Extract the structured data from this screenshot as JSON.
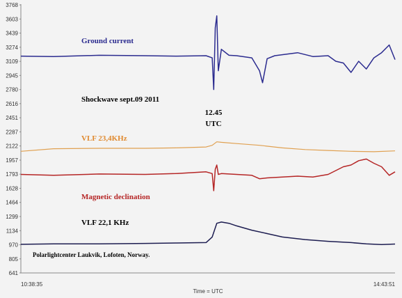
{
  "chart_data": {
    "type": "line",
    "xlabel": "Time = UTC",
    "x_tick_labels": [
      "10:38:35",
      "14:43:51"
    ],
    "xlim": [
      "10:38:35",
      "14:43:51"
    ],
    "ylabel": "",
    "y_ticks": [
      641,
      805,
      970,
      1134,
      1299,
      1464,
      1628,
      1793,
      1957,
      2122,
      2287,
      2451,
      2616,
      2780,
      2945,
      3109,
      3274,
      3439,
      3603,
      3768
    ],
    "ylim": [
      641,
      3768
    ],
    "grid": false,
    "colors": {
      "ground_current": "#2b2b8f",
      "vlf_23_4": "#e0a050",
      "magnetic_declination": "#b52525",
      "vlf_22_1": "#1c1c50",
      "background": "#f3f3f3",
      "axis": "#888888"
    },
    "series": [
      {
        "name": "Ground current",
        "color_key": "ground_current",
        "x": [
          "10:38:35",
          "11:00",
          "11:30",
          "12:00",
          "12:20",
          "12:40",
          "12:44",
          "12:45",
          "12:46",
          "12:47",
          "12:48",
          "12:50",
          "12:55",
          "13:00",
          "13:10",
          "13:15",
          "13:17",
          "13:20",
          "13:25",
          "13:40",
          "13:50",
          "14:00",
          "14:05",
          "14:10",
          "14:15",
          "14:20",
          "14:25",
          "14:30",
          "14:35",
          "14:40",
          "14:43:51"
        ],
        "values": [
          3170,
          3165,
          3180,
          3175,
          3170,
          3175,
          3150,
          2780,
          3500,
          3640,
          3000,
          3250,
          3180,
          3175,
          3150,
          3000,
          2860,
          3140,
          3175,
          3210,
          3165,
          3175,
          3110,
          3090,
          2980,
          3110,
          3020,
          3150,
          3210,
          3300,
          3130
        ]
      },
      {
        "name": "VLF 23,4KHz",
        "color_key": "vlf_23_4",
        "x": [
          "10:38:35",
          "11:00",
          "11:30",
          "12:00",
          "12:20",
          "12:40",
          "12:44",
          "12:47",
          "12:50",
          "13:00",
          "13:15",
          "13:30",
          "13:45",
          "14:00",
          "14:15",
          "14:30",
          "14:43:51"
        ],
        "values": [
          2060,
          2090,
          2095,
          2095,
          2100,
          2110,
          2130,
          2170,
          2165,
          2150,
          2130,
          2100,
          2080,
          2070,
          2060,
          2055,
          2065
        ]
      },
      {
        "name": "Magnetic declination",
        "color_key": "magnetic_declination",
        "x": [
          "10:38:35",
          "11:00",
          "11:30",
          "12:00",
          "12:20",
          "12:40",
          "12:44",
          "12:45",
          "12:46",
          "12:47",
          "12:48",
          "12:50",
          "13:00",
          "13:10",
          "13:15",
          "13:20",
          "13:30",
          "13:40",
          "13:50",
          "14:00",
          "14:10",
          "14:15",
          "14:20",
          "14:25",
          "14:30",
          "14:35",
          "14:40",
          "14:43:51"
        ],
        "values": [
          1790,
          1780,
          1795,
          1790,
          1800,
          1820,
          1800,
          1600,
          1850,
          1900,
          1790,
          1800,
          1790,
          1780,
          1740,
          1750,
          1760,
          1770,
          1760,
          1790,
          1880,
          1900,
          1950,
          1970,
          1920,
          1880,
          1780,
          1820
        ]
      },
      {
        "name": "VLF 22,1 KHz",
        "color_key": "vlf_22_1",
        "x": [
          "10:38:35",
          "11:00",
          "11:30",
          "12:00",
          "12:20",
          "12:40",
          "12:44",
          "12:47",
          "12:50",
          "12:55",
          "13:00",
          "13:10",
          "13:20",
          "13:30",
          "13:45",
          "14:00",
          "14:15",
          "14:25",
          "14:35",
          "14:43:51"
        ],
        "values": [
          975,
          980,
          980,
          985,
          990,
          995,
          1060,
          1220,
          1235,
          1220,
          1190,
          1140,
          1100,
          1060,
          1030,
          1010,
          995,
          980,
          972,
          978
        ]
      }
    ]
  },
  "annotations": {
    "ground_current": "Ground current",
    "shockwave": "Shockwave sept.09 2011",
    "time_value": "12.45",
    "time_unit": "UTC",
    "vlf_23_4": "VLF 23,4KHz",
    "magnetic_declination": "Magnetic declination",
    "vlf_22_1": "VLF 22,1 KHz",
    "location": "Polarlightcenter Laukvik, Lofoten, Norway."
  }
}
